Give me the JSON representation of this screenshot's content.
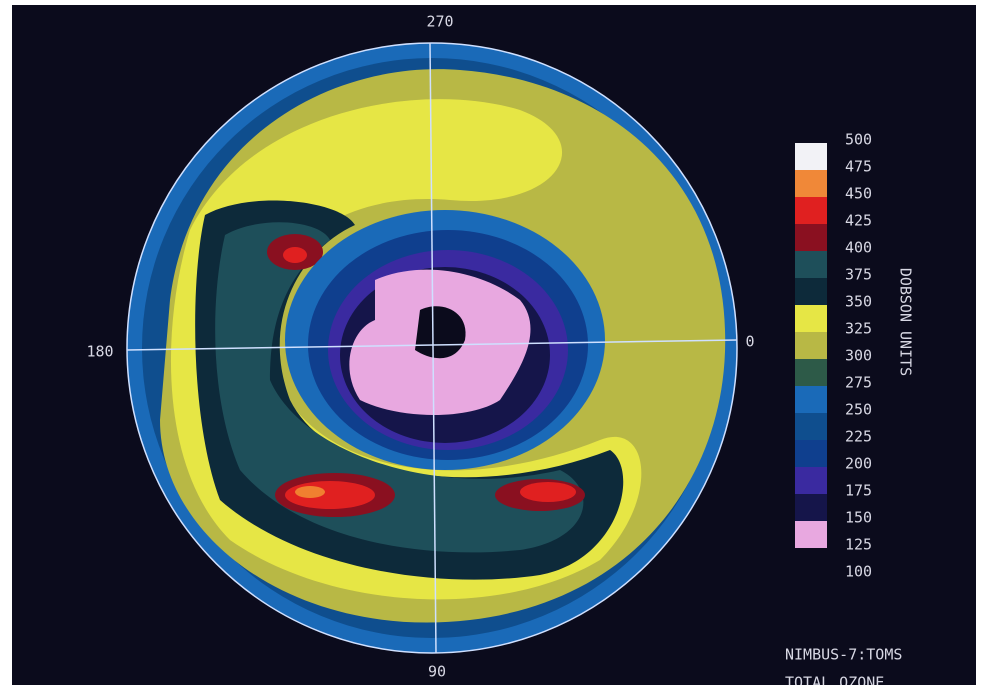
{
  "axis_labels": {
    "top": "270",
    "left": "180",
    "right": "0",
    "bottom": "90"
  },
  "legend": {
    "title": "DOBSON UNITS",
    "labels": [
      "500",
      "475",
      "450",
      "425",
      "400",
      "375",
      "350",
      "325",
      "300",
      "275",
      "250",
      "225",
      "200",
      "175",
      "150",
      "125",
      "100"
    ]
  },
  "caption": {
    "line1": "NIMBUS-7:TOMS",
    "line2": "TOTAL OZONE"
  }
}
